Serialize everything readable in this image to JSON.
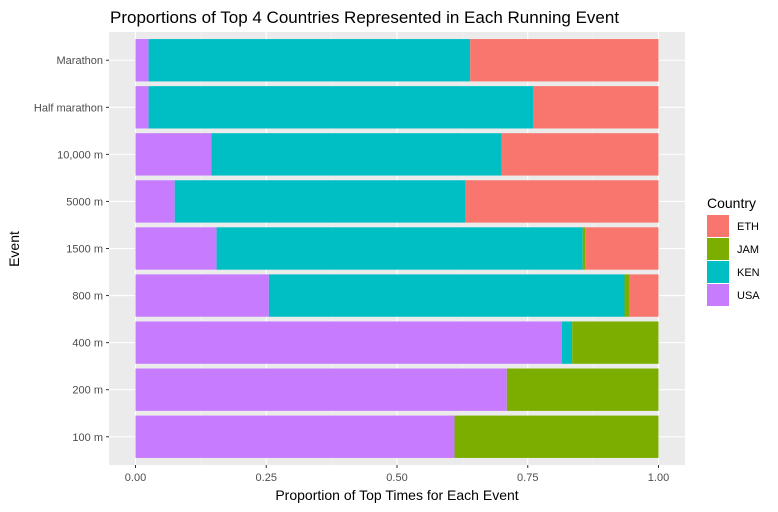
{
  "chart_data": {
    "type": "bar",
    "orientation": "horizontal",
    "stacked": true,
    "title": "Proportions of Top 4 Countries Represented in Each Running Event",
    "xlabel": "Proportion of Top Times for Each Event",
    "ylabel": "Event",
    "xlim": [
      0,
      1
    ],
    "xticks": [
      "0.00",
      "0.25",
      "0.50",
      "0.75",
      "1.00"
    ],
    "xtick_values": [
      0,
      0.25,
      0.5,
      0.75,
      1.0
    ],
    "categories": [
      "Marathon",
      "Half marathon",
      "10,000 m",
      "5000 m",
      "1500 m",
      "800 m",
      "400 m",
      "200 m",
      "100 m"
    ],
    "stack_order": [
      "USA",
      "KEN",
      "JAM",
      "ETH"
    ],
    "series": [
      {
        "name": "ETH",
        "color": "#F8766D",
        "values": [
          0.36,
          0.24,
          0.3,
          0.37,
          0.14,
          0.055,
          0.0,
          0.0,
          0.0
        ]
      },
      {
        "name": "JAM",
        "color": "#7CAE00",
        "values": [
          0.0,
          0.0,
          0.0,
          0.0,
          0.005,
          0.01,
          0.165,
          0.29,
          0.39
        ]
      },
      {
        "name": "KEN",
        "color": "#00BFC4",
        "values": [
          0.615,
          0.735,
          0.555,
          0.555,
          0.7,
          0.68,
          0.02,
          0.0,
          0.0
        ]
      },
      {
        "name": "USA",
        "color": "#C77CFF",
        "values": [
          0.025,
          0.025,
          0.145,
          0.075,
          0.155,
          0.255,
          0.815,
          0.71,
          0.61
        ]
      }
    ],
    "legend": {
      "title": "Country",
      "position": "right"
    },
    "grid": true,
    "panel_background": "#EBEBEB"
  }
}
